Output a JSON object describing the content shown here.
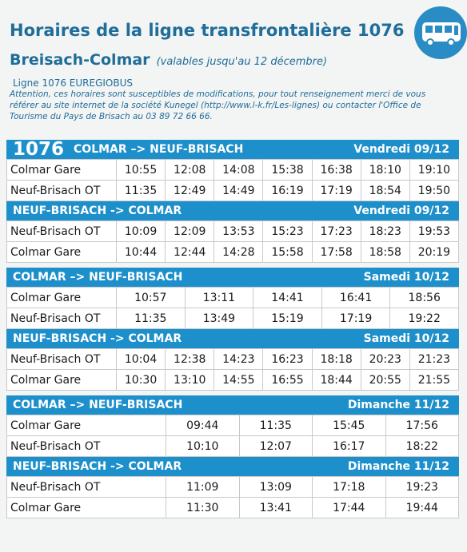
{
  "header": {
    "title": "Horaires de la ligne transfrontalière 1076",
    "route": "Breisach-Colmar",
    "validity": "(valables jusqu'au 12 décembre)",
    "line": "Ligne 1076 EUREGIOBUS",
    "notice": "Attention, ces horaires sont susceptibles de modifications, pour tout renseignement merci de vous référer au site internet de la société Kunegel (http://www.l-k.fr/Les-lignes) ou contacter l'Office de Tourisme du Pays de Brisach au 03 89 72 66 66."
  },
  "blocks": [
    {
      "sections": [
        {
          "line_number": "1076",
          "direction": "COLMAR –> NEUF-BRISACH",
          "day": "Vendredi 09/12",
          "rows": [
            [
              "Colmar Gare",
              "10:55",
              "12:08",
              "14:08",
              "15:38",
              "16:38",
              "18:10",
              "19:10"
            ],
            [
              "Neuf-Brisach OT",
              "11:35",
              "12:49",
              "14:49",
              "16:19",
              "17:19",
              "18:54",
              "19:50"
            ]
          ]
        },
        {
          "direction": "NEUF-BRISACH -> COLMAR",
          "day": "Vendredi 09/12",
          "rows": [
            [
              "Neuf-Brisach OT",
              "10:09",
              "12:09",
              "13:53",
              "15:23",
              "17:23",
              "18:23",
              "19:53"
            ],
            [
              "Colmar Gare",
              "10:44",
              "12:44",
              "14:28",
              "15:58",
              "17:58",
              "18:58",
              "20:19"
            ]
          ]
        }
      ]
    },
    {
      "sections": [
        {
          "direction": "COLMAR –> NEUF-BRISACH",
          "day": "Samedi 10/12",
          "rows": [
            [
              "Colmar Gare",
              "10:57",
              "13:11",
              "14:41",
              "16:41",
              "18:56"
            ],
            [
              "Neuf-Brisach OT",
              "11:35",
              "13:49",
              "15:19",
              "17:19",
              "19:22"
            ]
          ]
        },
        {
          "direction": "NEUF-BRISACH -> COLMAR",
          "day": "Samedi 10/12",
          "rows": [
            [
              "Neuf-Brisach OT",
              "10:04",
              "12:38",
              "14:23",
              "16:23",
              "18:18",
              "20:23",
              "21:23"
            ],
            [
              "Colmar Gare",
              "10:30",
              "13:10",
              "14:55",
              "16:55",
              "18:44",
              "20:55",
              "21:55"
            ]
          ]
        }
      ]
    },
    {
      "sections": [
        {
          "direction": "COLMAR –> NEUF-BRISACH",
          "day": "Dimanche 11/12",
          "rows": [
            [
              "Colmar Gare",
              "09:44",
              "11:35",
              "15:45",
              "17:56"
            ],
            [
              "Neuf-Brisach OT",
              "10:10",
              "12:07",
              "16:17",
              "18:22"
            ]
          ]
        },
        {
          "direction": "NEUF-BRISACH -> COLMAR",
          "day": "Dimanche 11/12",
          "rows": [
            [
              "Neuf-Brisach OT",
              "11:09",
              "13:09",
              "17:18",
              "19:23"
            ],
            [
              "Colmar Gare",
              "11:30",
              "13:41",
              "17:44",
              "19:44"
            ]
          ]
        }
      ]
    }
  ]
}
